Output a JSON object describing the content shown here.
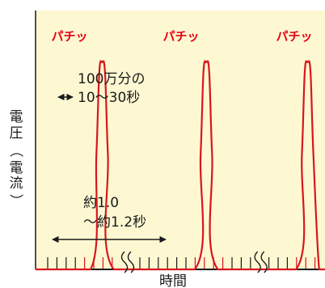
{
  "chart_data": {
    "type": "line",
    "title": "",
    "xlabel": "時間",
    "ylabel": "電圧（電流）",
    "ylabel_chars": [
      "電",
      "圧",
      "（",
      "電",
      "流",
      "）"
    ],
    "pulse_label": "パチッ",
    "series": [
      {
        "points": [
          [
            0,
            0
          ],
          [
            19,
            0
          ],
          [
            21,
            0.55
          ],
          [
            22,
            0.95
          ],
          [
            23,
            1
          ],
          [
            24,
            0.95
          ],
          [
            25,
            0.55
          ],
          [
            27,
            0
          ],
          [
            55,
            0
          ],
          [
            57,
            0.55
          ],
          [
            58,
            0.95
          ],
          [
            59,
            1
          ],
          [
            60,
            0.95
          ],
          [
            61,
            0.55
          ],
          [
            63,
            0
          ],
          [
            90,
            0
          ],
          [
            92,
            0.55
          ],
          [
            93,
            0.95
          ],
          [
            94,
            1
          ],
          [
            95,
            0.95
          ],
          [
            96,
            0.55
          ],
          [
            98,
            0
          ],
          [
            100,
            0
          ]
        ]
      }
    ],
    "xlim": [
      0,
      100
    ],
    "ylim": [
      0,
      1.25
    ],
    "axis_breaks_x": [
      31,
      77
    ],
    "colors": {
      "background": "#fdf8d2",
      "pulse": "#d9161e",
      "axis": "#1a1a1a",
      "tick_red": "#d9161e",
      "tick_black": "#1a1a1a"
    },
    "annotations": {
      "width_label_line1": "100万分の",
      "width_label_line2": "10～30秒",
      "interval_label_line1": "約1.0",
      "interval_label_line2": "～約1.2秒"
    }
  }
}
